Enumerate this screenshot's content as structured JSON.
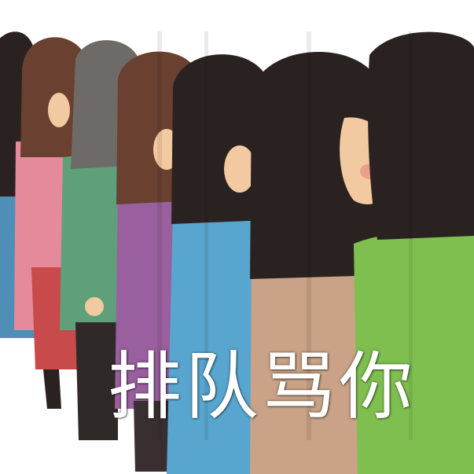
{
  "meme": {
    "caption": "排队骂你"
  },
  "colors": {
    "background": "#ffffff",
    "hair_dark": "#2a2220",
    "hair_brown": "#6a4030",
    "hair_gray": "#6e6a68",
    "skin": "#f2c9a0",
    "shirt_blue": "#4f8fb7",
    "shirt_pink": "#e58a9a",
    "shirt_green": "#5fa07a",
    "shirt_purple": "#9a5f9e",
    "shirt_cyan": "#58a6cf",
    "shirt_tan": "#c9a287",
    "shirt_lime": "#7fbf4f",
    "skirt_red": "#c94a4a",
    "caption_text": "#ffffff"
  },
  "figures": [
    {
      "name": "person-1",
      "hair": "dark",
      "clothing": "blue"
    },
    {
      "name": "person-2",
      "hair": "brown",
      "clothing": "pink"
    },
    {
      "name": "person-3",
      "hair": "gray",
      "clothing": "green"
    },
    {
      "name": "person-4",
      "hair": "brown",
      "clothing": "purple"
    },
    {
      "name": "person-5",
      "hair": "dark",
      "clothing": "cyan"
    },
    {
      "name": "person-6",
      "hair": "dark",
      "clothing": "tan"
    },
    {
      "name": "person-7",
      "hair": "dark",
      "clothing": "lime"
    }
  ]
}
